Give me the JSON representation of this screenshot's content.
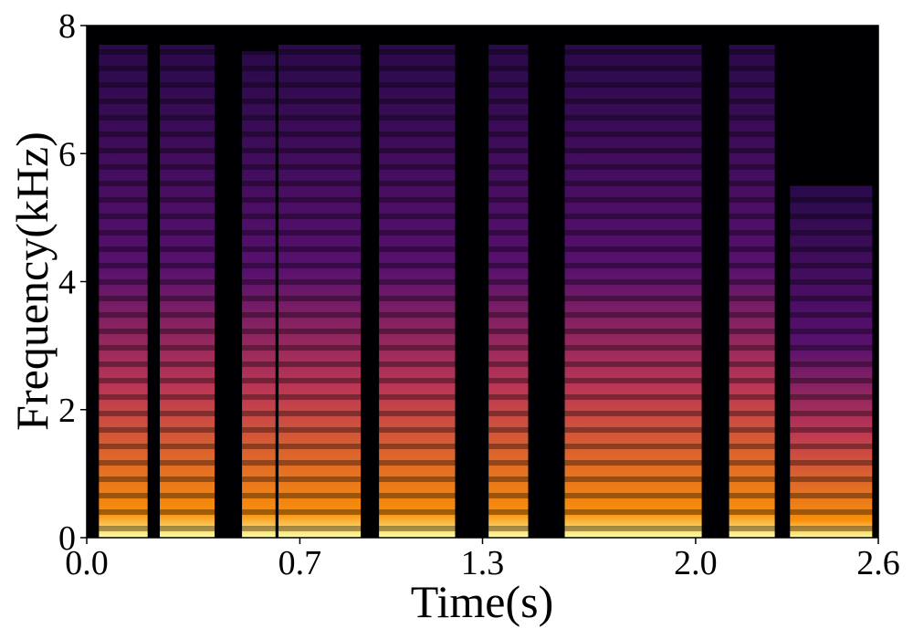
{
  "chart_data": {
    "type": "spectrogram",
    "xlabel": "Time(s)",
    "ylabel": "Frequency(kHz)",
    "xlim": [
      0,
      2.6
    ],
    "xticks": [
      {
        "value": 0,
        "label": "0.0"
      },
      0.7,
      1.3,
      {
        "value": 2,
        "label": "2.0"
      },
      2.6
    ],
    "ylim": [
      0,
      8
    ],
    "yticks": [
      0,
      2,
      4,
      6,
      8
    ],
    "segments": [
      {
        "start": 0.04,
        "end": 0.2,
        "top": 7.7
      },
      {
        "start": 0.24,
        "end": 0.42,
        "top": 7.7
      },
      {
        "start": 0.51,
        "end": 0.62,
        "top": 7.6
      },
      {
        "start": 0.63,
        "end": 0.9,
        "top": 7.7
      },
      {
        "start": 0.96,
        "end": 1.21,
        "top": 7.7
      },
      {
        "start": 1.32,
        "end": 1.45,
        "top": 7.7
      },
      {
        "start": 1.57,
        "end": 2.02,
        "top": 7.7
      },
      {
        "start": 2.11,
        "end": 2.26,
        "top": 7.7
      },
      {
        "start": 2.31,
        "end": 2.58,
        "top": 5.5
      }
    ]
  }
}
